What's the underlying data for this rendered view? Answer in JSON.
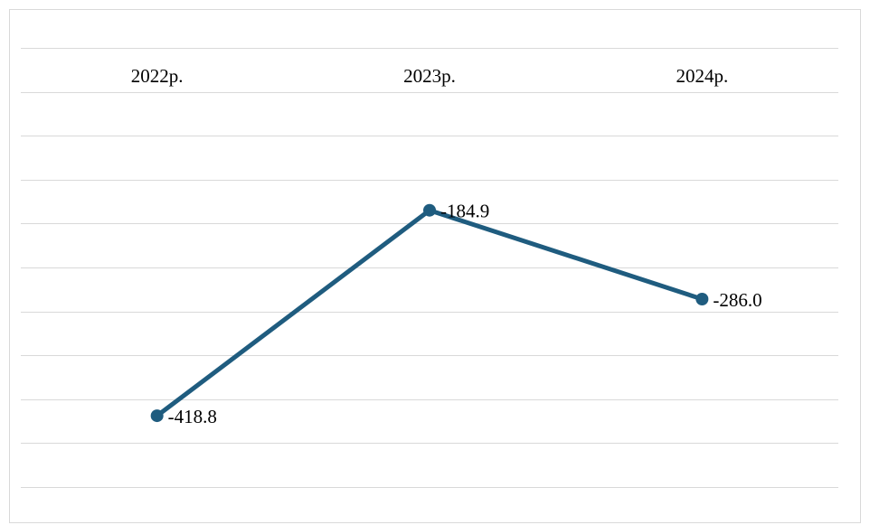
{
  "chart_data": {
    "type": "line",
    "title": "",
    "xlabel": "",
    "ylabel": "",
    "categories": [
      "2022р.",
      "2023р.",
      "2024р."
    ],
    "series": [
      {
        "values": [
          -418.8,
          -184.9,
          -286.0
        ]
      }
    ],
    "data_labels": [
      "-418.8",
      "-184.9",
      "-286.0"
    ],
    "ylim": [
      -500,
      0
    ],
    "ytick_step": 50,
    "grid": true,
    "legend": "none",
    "x_axis_position": "top",
    "colors": {
      "line": "#1f5c7f",
      "grid": "#d9d9d9"
    }
  }
}
